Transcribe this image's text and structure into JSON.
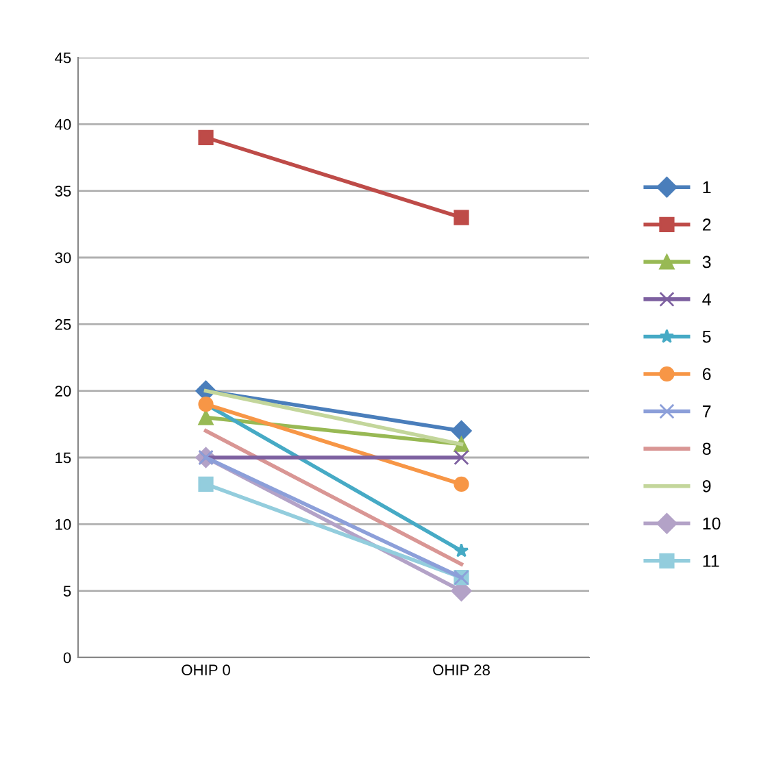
{
  "chart_data": {
    "type": "line",
    "categories": [
      "OHIP 0",
      "OHIP 28"
    ],
    "ylim": [
      0,
      45
    ],
    "yticks": [
      0,
      5,
      10,
      15,
      20,
      25,
      30,
      35,
      40,
      45
    ],
    "grid": "y",
    "legend": "right",
    "line_style": "solid",
    "series": [
      {
        "name": "1",
        "color": "#4a7ebb",
        "marker": "diamond",
        "values": [
          20,
          17
        ]
      },
      {
        "name": "2",
        "color": "#be4b48",
        "marker": "square",
        "values": [
          39,
          33
        ]
      },
      {
        "name": "3",
        "color": "#98b954",
        "marker": "triangle",
        "values": [
          18,
          16
        ]
      },
      {
        "name": "4",
        "color": "#7d60a0",
        "marker": "cross",
        "values": [
          15,
          15
        ]
      },
      {
        "name": "5",
        "color": "#46aac5",
        "marker": "star",
        "values": [
          19,
          8
        ]
      },
      {
        "name": "6",
        "color": "#f79646",
        "marker": "circle",
        "values": [
          19,
          13
        ]
      },
      {
        "name": "7",
        "color": "#8c9fd9",
        "marker": "cross",
        "values": [
          15,
          6
        ]
      },
      {
        "name": "8",
        "color": "#d99694",
        "marker": "none",
        "values": [
          17,
          7
        ]
      },
      {
        "name": "9",
        "color": "#c3d69b",
        "marker": "none",
        "values": [
          20,
          16
        ]
      },
      {
        "name": "10",
        "color": "#b3a2c7",
        "marker": "diamond",
        "values": [
          15,
          5
        ]
      },
      {
        "name": "11",
        "color": "#93cddd",
        "marker": "square",
        "values": [
          13,
          6
        ]
      }
    ]
  }
}
